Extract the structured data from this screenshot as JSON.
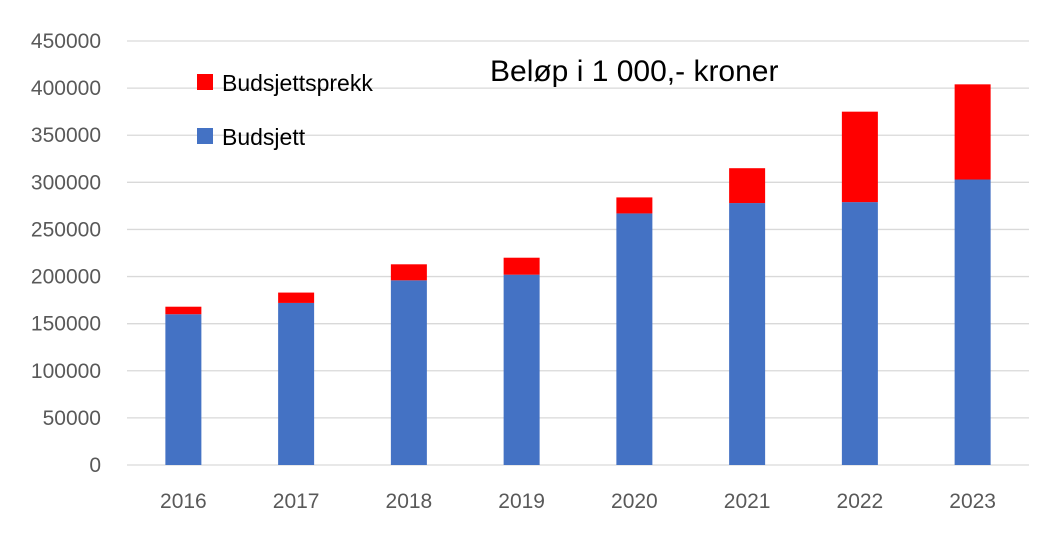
{
  "chart_data": {
    "type": "bar",
    "stacked": true,
    "title": "Beløp i 1 000,- kroner",
    "xlabel": "",
    "ylabel": "",
    "categories": [
      "2016",
      "2017",
      "2018",
      "2019",
      "2020",
      "2021",
      "2022",
      "2023"
    ],
    "series": [
      {
        "name": "Budsjett",
        "color": "#4472C4",
        "values": [
          160000,
          172000,
          196000,
          202000,
          267000,
          278000,
          279000,
          303000
        ]
      },
      {
        "name": "Budsjettsprekk",
        "color": "#FF0000",
        "values": [
          8000,
          11000,
          17000,
          18000,
          17000,
          37000,
          96000,
          101000
        ]
      }
    ],
    "ylim": [
      0,
      450000
    ],
    "yticks": [
      "0",
      "50000",
      "100000",
      "150000",
      "200000",
      "250000",
      "300000",
      "350000",
      "400000",
      "450000"
    ],
    "grid": true,
    "gridColor": "#D9D9D9",
    "legend": {
      "position": "top-left",
      "order": [
        "Budsjettsprekk",
        "Budsjett"
      ]
    }
  }
}
